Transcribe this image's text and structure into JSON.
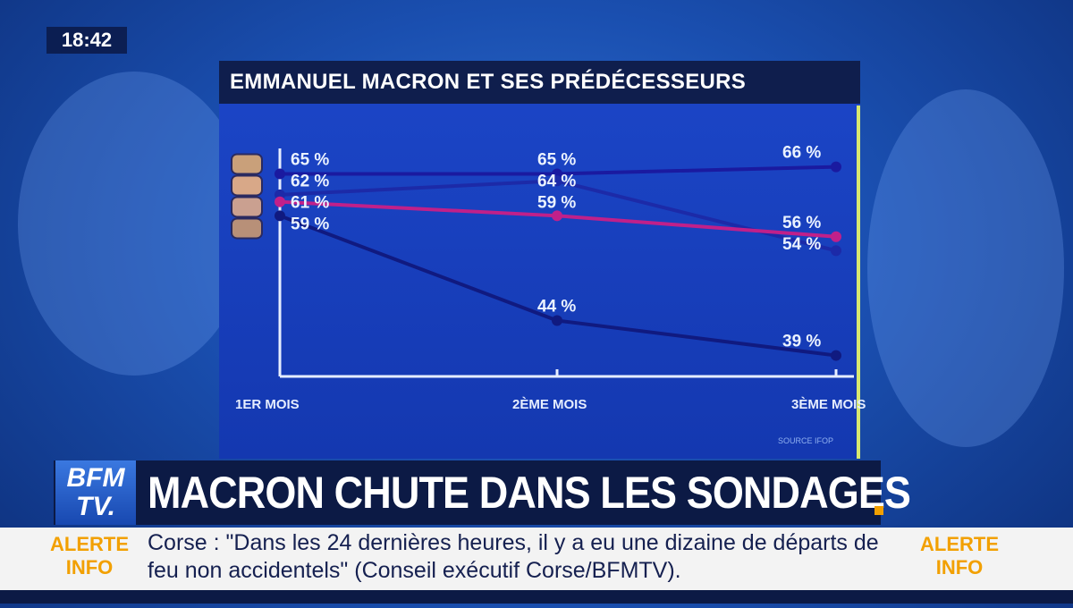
{
  "clock": "18:42",
  "chart_data": {
    "type": "line",
    "title": "EMMANUEL MACRON ET SES PRÉDÉCESSEURS",
    "categories": [
      "1ER MOIS",
      "2ÈME MOIS",
      "3ÈME MOIS"
    ],
    "ylim": [
      36,
      68
    ],
    "grid": false,
    "source": "SOURCE IFOP",
    "series": [
      {
        "values": [
          65,
          65,
          66
        ],
        "labels": [
          "65 %",
          "65 %",
          "66 %"
        ],
        "color": "#1a1aa0"
      },
      {
        "values": [
          62,
          64,
          54
        ],
        "labels": [
          "62 %",
          "64 %",
          "54 %"
        ],
        "color": "#1c2aa8"
      },
      {
        "values": [
          61,
          59,
          56
        ],
        "labels": [
          "61 %",
          "59 %",
          "56 %"
        ],
        "color": "#c0208a"
      },
      {
        "values": [
          59,
          44,
          39
        ],
        "labels": [
          "59 %",
          "44 %",
          "39 %"
        ],
        "color": "#101a80"
      }
    ]
  },
  "banner": {
    "logo": "BFM TV.",
    "headline": "MACRON CHUTE DANS LES SONDAGES"
  },
  "ticker": {
    "alert_label": "ALERTE INFO",
    "text": "Corse : \"Dans les 24 dernières heures, il y a eu une dizaine de départs de feu non accidentels\" (Conseil exécutif Corse/BFMTV)."
  }
}
